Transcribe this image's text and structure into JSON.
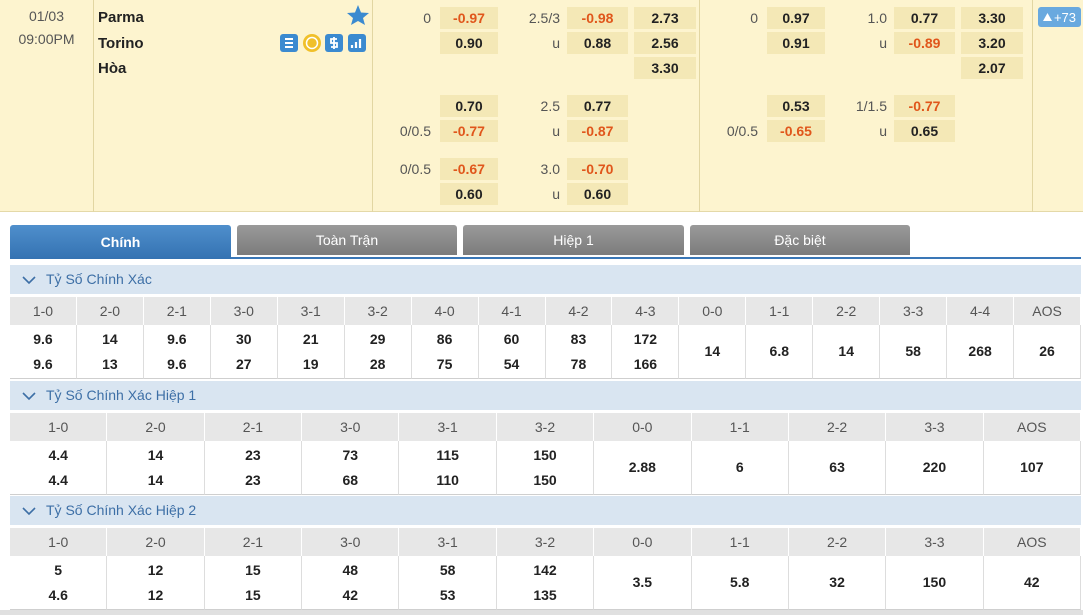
{
  "match": {
    "date": "01/03",
    "time": "09:00PM",
    "home": "Parma",
    "away": "Torino",
    "draw": "Hòa",
    "more": "+73"
  },
  "odds": [
    {
      "rows": [
        [
          "0",
          "-0.97",
          "2.5/3",
          "-0.98",
          "2.73"
        ],
        [
          null,
          "0.90",
          "u",
          "0.88",
          "2.56"
        ],
        [
          null,
          null,
          null,
          null,
          "3.30"
        ],
        [
          null,
          "0.70",
          "2.5",
          "0.77",
          null
        ],
        [
          "0/0.5",
          "-0.77",
          "u",
          "-0.87",
          null
        ],
        [
          "0/0.5",
          "-0.67",
          "3.0",
          "-0.70",
          null
        ],
        [
          null,
          "0.60",
          "u",
          "0.60",
          null
        ]
      ]
    },
    {
      "rows": [
        [
          "0",
          "0.97",
          "1.0",
          "0.77",
          "3.30"
        ],
        [
          null,
          "0.91",
          "u",
          "-0.89",
          "3.20"
        ],
        [
          null,
          null,
          null,
          null,
          "2.07"
        ],
        [
          null,
          "0.53",
          "1/1.5",
          "-0.77",
          null
        ],
        [
          "0/0.5",
          "-0.65",
          "u",
          "0.65",
          null
        ]
      ]
    }
  ],
  "tabs": [
    "Chính",
    "Toàn Trận",
    "Hiệp 1",
    "Đặc biệt"
  ],
  "sections": [
    {
      "title": "Tỷ Số Chính Xác",
      "columns": [
        {
          "label": "1-0",
          "values": [
            "9.6",
            "9.6"
          ]
        },
        {
          "label": "2-0",
          "values": [
            "14",
            "13"
          ]
        },
        {
          "label": "2-1",
          "values": [
            "9.6",
            "9.6"
          ]
        },
        {
          "label": "3-0",
          "values": [
            "30",
            "27"
          ]
        },
        {
          "label": "3-1",
          "values": [
            "21",
            "19"
          ]
        },
        {
          "label": "3-2",
          "values": [
            "29",
            "28"
          ]
        },
        {
          "label": "4-0",
          "values": [
            "86",
            "75"
          ]
        },
        {
          "label": "4-1",
          "values": [
            "60",
            "54"
          ]
        },
        {
          "label": "4-2",
          "values": [
            "83",
            "78"
          ]
        },
        {
          "label": "4-3",
          "values": [
            "172",
            "166"
          ]
        },
        {
          "label": "0-0",
          "values": [
            "14"
          ]
        },
        {
          "label": "1-1",
          "values": [
            "6.8"
          ]
        },
        {
          "label": "2-2",
          "values": [
            "14"
          ]
        },
        {
          "label": "3-3",
          "values": [
            "58"
          ]
        },
        {
          "label": "4-4",
          "values": [
            "268"
          ]
        },
        {
          "label": "AOS",
          "values": [
            "26"
          ]
        }
      ]
    },
    {
      "title": "Tỷ Số Chính Xác Hiệp 1",
      "columns": [
        {
          "label": "1-0",
          "values": [
            "4.4",
            "4.4"
          ]
        },
        {
          "label": "2-0",
          "values": [
            "14",
            "14"
          ]
        },
        {
          "label": "2-1",
          "values": [
            "23",
            "23"
          ]
        },
        {
          "label": "3-0",
          "values": [
            "73",
            "68"
          ]
        },
        {
          "label": "3-1",
          "values": [
            "115",
            "110"
          ]
        },
        {
          "label": "3-2",
          "values": [
            "150",
            "150"
          ]
        },
        {
          "label": "0-0",
          "values": [
            "2.88"
          ]
        },
        {
          "label": "1-1",
          "values": [
            "6"
          ]
        },
        {
          "label": "2-2",
          "values": [
            "63"
          ]
        },
        {
          "label": "3-3",
          "values": [
            "220"
          ]
        },
        {
          "label": "AOS",
          "values": [
            "107"
          ]
        }
      ]
    },
    {
      "title": "Tỷ Số Chính Xác Hiệp 2",
      "columns": [
        {
          "label": "1-0",
          "values": [
            "5",
            "4.6"
          ]
        },
        {
          "label": "2-0",
          "values": [
            "12",
            "12"
          ]
        },
        {
          "label": "2-1",
          "values": [
            "15",
            "15"
          ]
        },
        {
          "label": "3-0",
          "values": [
            "48",
            "42"
          ]
        },
        {
          "label": "3-1",
          "values": [
            "58",
            "53"
          ]
        },
        {
          "label": "3-2",
          "values": [
            "142",
            "135"
          ]
        },
        {
          "label": "0-0",
          "values": [
            "3.5"
          ]
        },
        {
          "label": "1-1",
          "values": [
            "5.8"
          ]
        },
        {
          "label": "2-2",
          "values": [
            "32"
          ]
        },
        {
          "label": "3-3",
          "values": [
            "150"
          ]
        },
        {
          "label": "AOS",
          "values": [
            "42"
          ]
        }
      ]
    }
  ]
}
